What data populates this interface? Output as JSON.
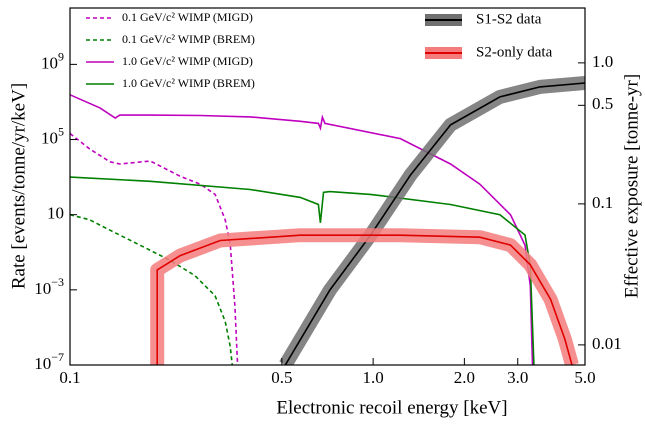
{
  "chart_data": {
    "type": "line",
    "xlabel": "Electronic recoil energy [keV]",
    "ylabel": "Rate [events/tonne/yr/keV]",
    "y2label": "Effective exposure [tonne-yr]",
    "xscale": "log",
    "yscale": "log",
    "y2scale": "log",
    "xlim": [
      0.1,
      5.0
    ],
    "ylim": [
      1e-07,
      1000000000000.0
    ],
    "y2lim": [
      0.0072,
      2.45
    ],
    "xticks": [
      0.1,
      0.5,
      {
        "value": 1.0,
        "label": "1.0"
      },
      {
        "value": 2.0,
        "label": "2.0"
      },
      {
        "value": 3.0,
        "label": "3.0"
      },
      {
        "value": 5.0,
        "label": "5.0"
      }
    ],
    "yticks": [
      {
        "value": 1e-07,
        "label": "10−7"
      },
      {
        "value": 0.001,
        "label": "10−3"
      },
      10,
      {
        "value": 100000,
        "label": "105"
      },
      {
        "value": 1000000000,
        "label": "109"
      }
    ],
    "y2ticks": [
      0.01,
      0.1,
      0.5,
      {
        "value": 1.0,
        "label": "1.0"
      }
    ],
    "series": [
      {
        "name": "0.1 GeV/c² WIMP (MIGD)",
        "color": "#bf00bf",
        "linestyle": "dashed",
        "axis": "y",
        "x": [
          0.1,
          0.116,
          0.1355,
          0.146,
          0.184,
          0.231,
          0.269,
          0.301,
          0.325,
          0.338,
          0.35,
          0.358
        ],
        "values": [
          210000,
          32000,
          6500,
          5000,
          7200,
          1100,
          420,
          120,
          5.4,
          0.24,
          0.00014,
          4.2e-08
        ]
      },
      {
        "name": "0.1 GeV/c² WIMP (BREM)",
        "color": "#008000",
        "linestyle": "dashed",
        "axis": "y",
        "x": [
          0.1,
          0.116,
          0.1355,
          0.17,
          0.214,
          0.258,
          0.301,
          0.325,
          0.338,
          0.345
        ],
        "values": [
          10,
          5.4,
          1.5,
          0.24,
          0.037,
          0.0058,
          0.00048,
          2.1e-05,
          9.3e-07,
          4e-08
        ]
      },
      {
        "name": "1.0 GeV/c² WIMP (MIGD)",
        "color": "#bf00bf",
        "linestyle": "solid",
        "axis": "y",
        "x": [
          0.1,
          0.1256,
          0.141,
          0.146,
          0.184,
          0.269,
          0.393,
          0.575,
          0.66,
          0.67,
          0.68,
          0.694,
          1.23,
          1.8,
          2.25,
          2.84,
          3.17,
          3.3,
          3.36
        ],
        "values": [
          24000000,
          4800000,
          1400000,
          2000000,
          2000000,
          1900000,
          1600000,
          930000,
          720000,
          400000,
          1550000,
          720000,
          112000,
          5000,
          420,
          10,
          0.24,
          0.00166,
          4e-08
        ]
      },
      {
        "name": "1.0 GeV/c² WIMP (BREM)",
        "color": "#008000",
        "linestyle": "solid",
        "axis": "y",
        "x": [
          0.1,
          0.184,
          0.393,
          0.575,
          0.66,
          0.67,
          0.686,
          0.72,
          0.98,
          1.8,
          2.62,
          3.17,
          3.3,
          3.4
        ],
        "values": [
          1000,
          600,
          220,
          83,
          35,
          3.7,
          155,
          170,
          120,
          35,
          10,
          0.83,
          0.02,
          4e-08
        ]
      },
      {
        "name": "S1-S2 data",
        "color": "#000000",
        "band_color": "#707070",
        "linestyle": "solid",
        "axis": "y2",
        "x": [
          0.513,
          0.72,
          0.98,
          1.33,
          1.8,
          2.62,
          3.55,
          5.0
        ],
        "values": [
          0.0072,
          0.0245,
          0.06,
          0.161,
          0.363,
          0.574,
          0.676,
          0.72
        ]
      },
      {
        "name": "S2-only data",
        "color": "#e00000",
        "band_color": "#f47c7c",
        "linestyle": "solid",
        "axis": "y2",
        "x": [
          0.194,
          0.194,
          0.231,
          0.313,
          0.575,
          1.23,
          2.25,
          2.84,
          3.3,
          3.85,
          4.29,
          4.53
        ],
        "values": [
          0.0072,
          0.034,
          0.043,
          0.055,
          0.06,
          0.06,
          0.058,
          0.051,
          0.037,
          0.021,
          0.011,
          0.0072
        ]
      }
    ]
  }
}
